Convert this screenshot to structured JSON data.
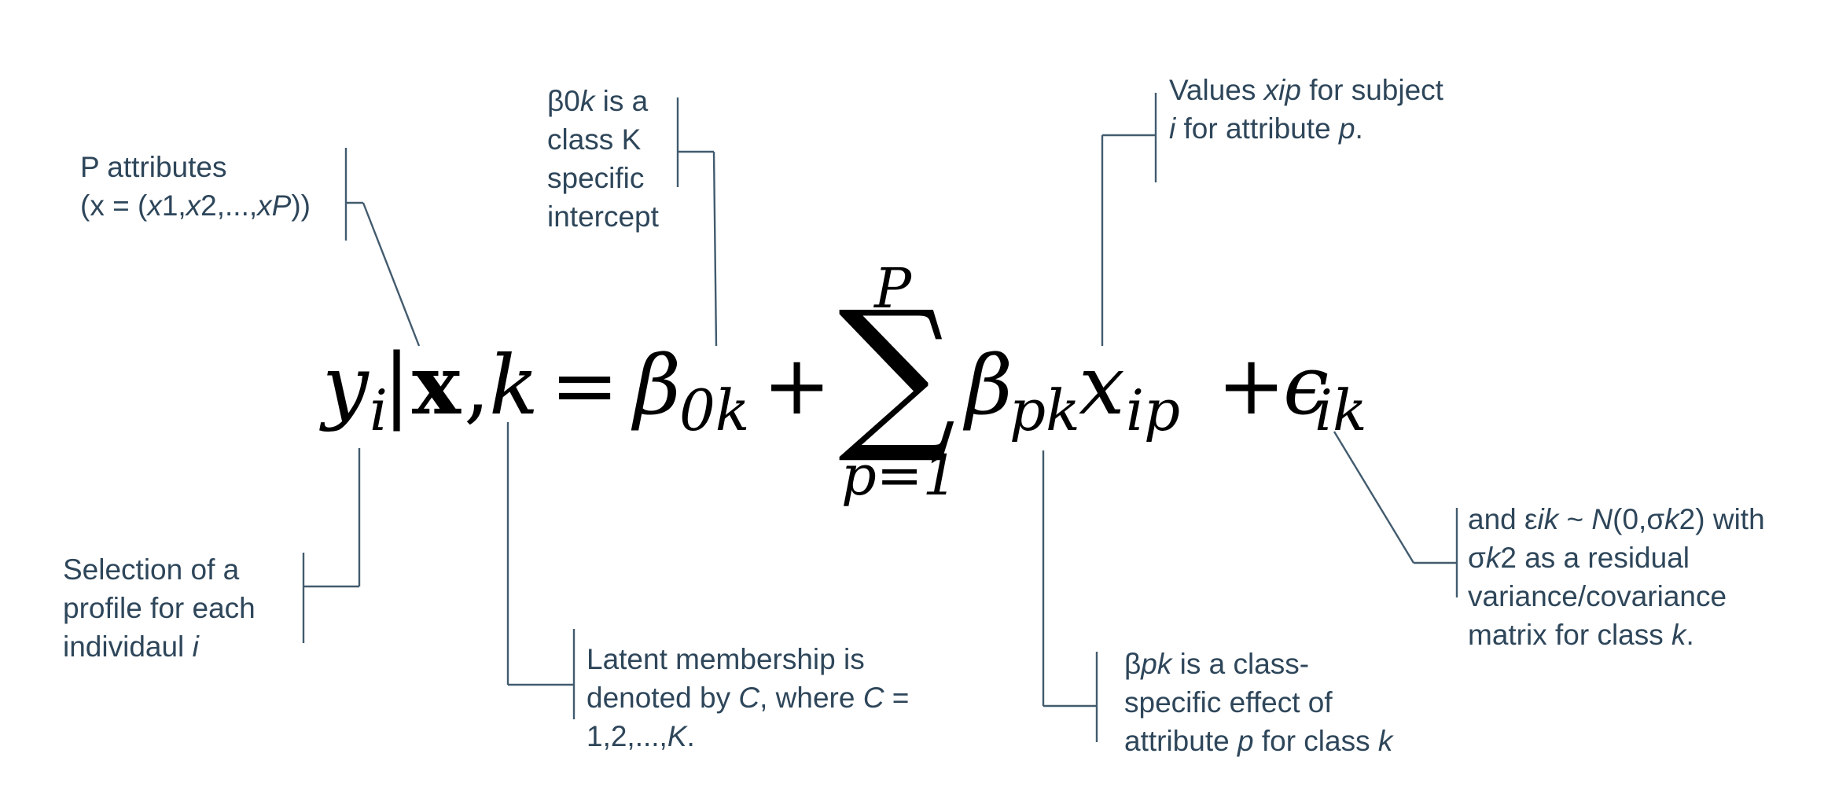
{
  "equation": {
    "lhs_var": "y",
    "lhs_sub": "i",
    "bar": "|",
    "vector": "x",
    "comma": ",",
    "class_var": "k",
    "equals": "=",
    "intercept_sym": "β",
    "intercept_sub": "0k",
    "plus_1": "+",
    "sum_sym": "∑",
    "sum_upper": "P",
    "sum_lower": "p=1",
    "slope_sym": "β",
    "slope_sub": "pk",
    "predictor_sym": "x",
    "predictor_sub": "ip",
    "plus_2": "+",
    "error_sym": "ϵ",
    "error_sub": "ik"
  },
  "annotations": {
    "attributes": {
      "line1": "P attributes",
      "line2_a": "(x = (",
      "line2_b": "x",
      "line2_c": "1,",
      "line2_d": "x",
      "line2_e": "2,...,",
      "line2_f": "xP",
      "line2_g": "))"
    },
    "intercept": {
      "line1_a": "β0",
      "line1_b": "k",
      "line1_c": " is a",
      "line2": "class K",
      "line3": "specific",
      "line4": "intercept"
    },
    "values": {
      "line1_a": "Values ",
      "line1_b": "xip",
      "line1_c": " for subject",
      "line2_a": "i",
      "line2_b": " for attribute ",
      "line2_c": "p",
      "line2_d": "."
    },
    "selection": {
      "line1": "Selection of a",
      "line2": "profile for each",
      "line3_a": "individaul ",
      "line3_b": "i"
    },
    "latent": {
      "line1": "Latent membership is",
      "line2_a": "denoted by ",
      "line2_b": "C",
      "line2_c": ", where ",
      "line2_d": "C",
      "line2_e": " =",
      "line3_a": "1,2,...,",
      "line3_b": "K",
      "line3_c": "."
    },
    "effect": {
      "line1_a": "β",
      "line1_b": "pk",
      "line1_c": " is a class-",
      "line2": "specific effect of",
      "line3_a": "attribute ",
      "line3_b": "p",
      "line3_c": " for class ",
      "line3_d": "k"
    },
    "error": {
      "line1_a": "and ε",
      "line1_b": "ik",
      "line1_c": " ~ ",
      "line1_d": "N",
      "line1_e": "(0,σ",
      "line1_f": "k",
      "line1_g": "2) with",
      "line2_a": "σ",
      "line2_b": "k",
      "line2_c": "2 as a residual",
      "line3": "variance/covariance",
      "line4_a": "matrix for class ",
      "line4_b": "k",
      "line4_c": "."
    }
  },
  "colors": {
    "annotation_text": "#2e465a",
    "leader_line": "#425b6e",
    "equation_text": "#000000",
    "background": "#ffffff"
  }
}
